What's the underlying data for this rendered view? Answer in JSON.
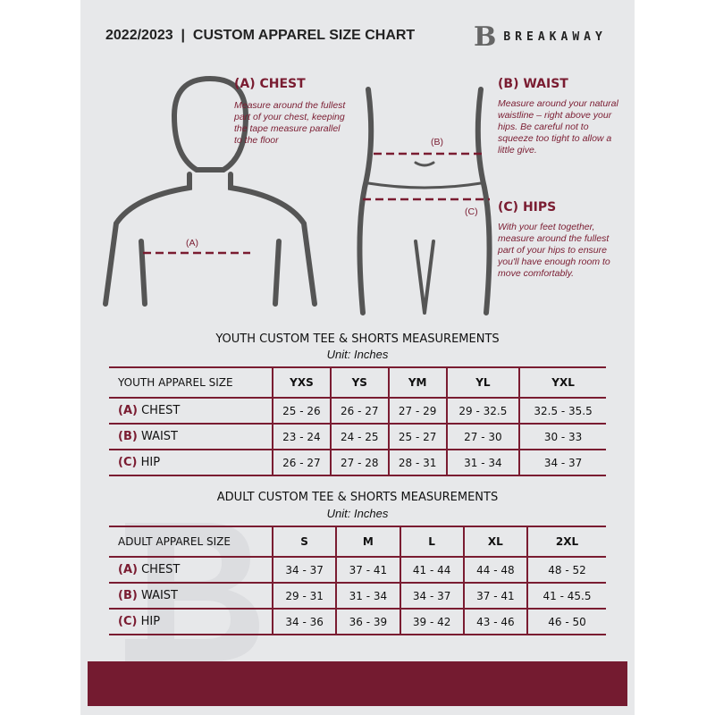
{
  "header": {
    "title": "2022/2023  |  CUSTOM APPAREL SIZE CHART",
    "brand": "BREAKAWAY",
    "logo_letter": "B"
  },
  "measures": {
    "chest": {
      "heading": "(A) CHEST",
      "desc": "Measure around the fullest part of your chest, keeping the tape measure parallel to the floor",
      "marker": "(A)"
    },
    "waist": {
      "heading": "(B) WAIST",
      "desc": "Measure around your natural waistline – right above your hips. Be careful not to squeeze too tight to allow a little give.",
      "marker": "(B)"
    },
    "hips": {
      "heading": "(C) HIPS",
      "desc": "With your feet together, measure around the fullest part of your hips to ensure you'll have enough room to move comfortably.",
      "marker": "(C)"
    }
  },
  "youth": {
    "title": "YOUTH CUSTOM TEE & SHORTS MEASUREMENTS",
    "unit": "Unit: Inches",
    "header": [
      "YOUTH APPAREL SIZE",
      "YXS",
      "YS",
      "YM",
      "YL",
      "YXL"
    ],
    "rows": [
      {
        "letter": "(A)",
        "label": "CHEST",
        "values": [
          "25 - 26",
          "26 - 27",
          "27 - 29",
          "29 - 32.5",
          "32.5 - 35.5"
        ]
      },
      {
        "letter": "(B)",
        "label": "WAIST",
        "values": [
          "23 - 24",
          "24 - 25",
          "25 - 27",
          "27 - 30",
          "30 - 33"
        ]
      },
      {
        "letter": "(C)",
        "label": "HIP",
        "values": [
          "26 - 27",
          "27 - 28",
          "28 - 31",
          "31 - 34",
          "34 - 37"
        ]
      }
    ]
  },
  "adult": {
    "title": "ADULT CUSTOM TEE & SHORTS MEASUREMENTS",
    "unit": "Unit: Inches",
    "header": [
      "ADULT APPAREL SIZE",
      "S",
      "M",
      "L",
      "XL",
      "2XL"
    ],
    "rows": [
      {
        "letter": "(A)",
        "label": "CHEST",
        "values": [
          "34 - 37",
          "37 - 41",
          "41 - 44",
          "44 - 48",
          "48 - 52"
        ]
      },
      {
        "letter": "(B)",
        "label": "WAIST",
        "values": [
          "29 - 31",
          "31 - 34",
          "34 - 37",
          "37 - 41",
          "41 - 45.5"
        ]
      },
      {
        "letter": "(C)",
        "label": "HIP",
        "values": [
          "34 - 36",
          "36 - 39",
          "39 - 42",
          "43 - 46",
          "46 - 50"
        ]
      }
    ]
  },
  "colors": {
    "accent": "#741b30",
    "background": "#e7e8ea"
  }
}
